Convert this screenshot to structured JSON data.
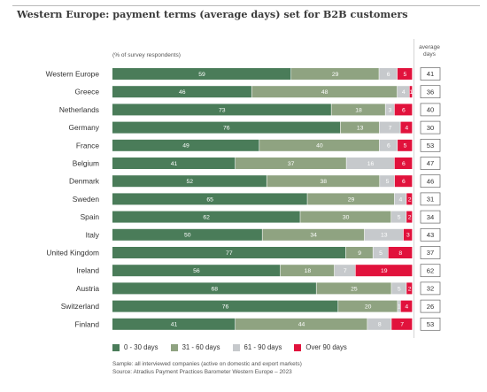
{
  "title": "Western Europe: payment terms (average days) set for B2B customers",
  "subtitle": "(% of survey respondents)",
  "avg_header": [
    "average",
    "days"
  ],
  "notes": [
    "Sample: all interviewed companies (active on domestic and export markets)",
    "Source: Atradius Payment Practices Barometer Western Europe – 2023"
  ],
  "colors": [
    "#4a7c59",
    "#8fa381",
    "#c6c9cc",
    "#e1123c"
  ],
  "chart_data": {
    "type": "bar",
    "orientation": "horizontal",
    "stacked": true,
    "title": "Western Europe: payment terms (average days) set for B2B customers",
    "xlim": [
      0,
      100
    ],
    "categories": [
      "Western Europe",
      "Greece",
      "Netherlands",
      "Germany",
      "France",
      "Belgium",
      "Denmark",
      "Sweden",
      "Spain",
      "Italy",
      "United Kingdom",
      "Ireland",
      "Austria",
      "Switzerland",
      "Finland"
    ],
    "series": [
      {
        "name": "0 - 30 days",
        "values": [
          59,
          46,
          73,
          76,
          49,
          41,
          52,
          65,
          62,
          50,
          77,
          56,
          68,
          76,
          41
        ]
      },
      {
        "name": "31 - 60 days",
        "values": [
          29,
          48,
          18,
          13,
          40,
          37,
          38,
          29,
          30,
          34,
          9,
          18,
          25,
          20,
          44
        ]
      },
      {
        "name": "61 - 90 days",
        "values": [
          6,
          4,
          3,
          7,
          6,
          16,
          5,
          4,
          5,
          13,
          5,
          7,
          5,
          1,
          8
        ]
      },
      {
        "name": "Over 90 days",
        "values": [
          5,
          1,
          6,
          4,
          5,
          6,
          6,
          2,
          2,
          3,
          8,
          19,
          2,
          4,
          7
        ]
      }
    ],
    "average_days": [
      41,
      36,
      40,
      30,
      53,
      47,
      46,
      31,
      34,
      43,
      37,
      62,
      32,
      26,
      53
    ],
    "legend_position": "bottom"
  }
}
